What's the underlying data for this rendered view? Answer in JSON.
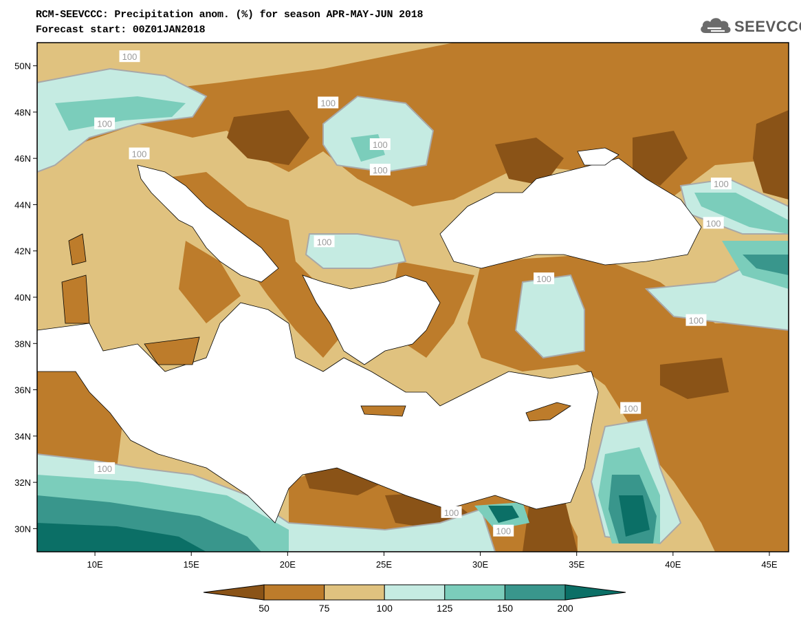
{
  "header": {
    "title_line1": "RCM-SEEVCCC: Precipitation anom. (%) for season APR-MAY-JUN 2018",
    "title_line2": "Forecast start: 00Z01JAN2018"
  },
  "logo": {
    "text": "SEEVCCC",
    "icon": "cloud-icon"
  },
  "map": {
    "lon_range": [
      7,
      46
    ],
    "lat_range": [
      29,
      51
    ],
    "lat_ticks": [
      {
        "value": 50,
        "label": "50N"
      },
      {
        "value": 48,
        "label": "48N"
      },
      {
        "value": 46,
        "label": "46N"
      },
      {
        "value": 44,
        "label": "44N"
      },
      {
        "value": 42,
        "label": "42N"
      },
      {
        "value": 40,
        "label": "40N"
      },
      {
        "value": 38,
        "label": "38N"
      },
      {
        "value": 36,
        "label": "36N"
      },
      {
        "value": 34,
        "label": "34N"
      },
      {
        "value": 32,
        "label": "32N"
      },
      {
        "value": 30,
        "label": "30N"
      }
    ],
    "lon_ticks": [
      {
        "value": 10,
        "label": "10E"
      },
      {
        "value": 15,
        "label": "15E"
      },
      {
        "value": 20,
        "label": "20E"
      },
      {
        "value": 25,
        "label": "25E"
      },
      {
        "value": 30,
        "label": "30E"
      },
      {
        "value": 35,
        "label": "35E"
      },
      {
        "value": 40,
        "label": "40E"
      },
      {
        "value": 45,
        "label": "45E"
      }
    ],
    "contour_label": "100",
    "contour_label_points": [
      [
        11.8,
        50.4
      ],
      [
        22.1,
        48.4
      ],
      [
        10.5,
        47.5
      ],
      [
        12.3,
        46.2
      ],
      [
        24.8,
        46.6
      ],
      [
        24.8,
        45.5
      ],
      [
        21.9,
        42.4
      ],
      [
        42.5,
        44.9
      ],
      [
        42.1,
        43.2
      ],
      [
        33.3,
        40.8
      ],
      [
        41.2,
        39.0
      ],
      [
        37.8,
        35.2
      ],
      [
        10.5,
        32.6
      ],
      [
        28.5,
        30.7
      ],
      [
        31.2,
        29.9
      ]
    ]
  },
  "colorbar": {
    "colors": [
      "#8a5317",
      "#bd7c2b",
      "#e0c27f",
      "#c5ebe2",
      "#7bcdbb",
      "#39968c",
      "#0b6f66"
    ],
    "labels": [
      "50",
      "75",
      "100",
      "125",
      "150",
      "200"
    ]
  },
  "palette": {
    "sea": "#ffffff",
    "very_dry": "#8a5317",
    "dry": "#bd7c2b",
    "slightly_dry": "#e0c27f",
    "slightly_wet": "#c5ebe2",
    "wet": "#7bcdbb",
    "very_wet": "#39968c",
    "extreme_wet": "#0b6f66",
    "contour_100": "#a8a8a8"
  }
}
